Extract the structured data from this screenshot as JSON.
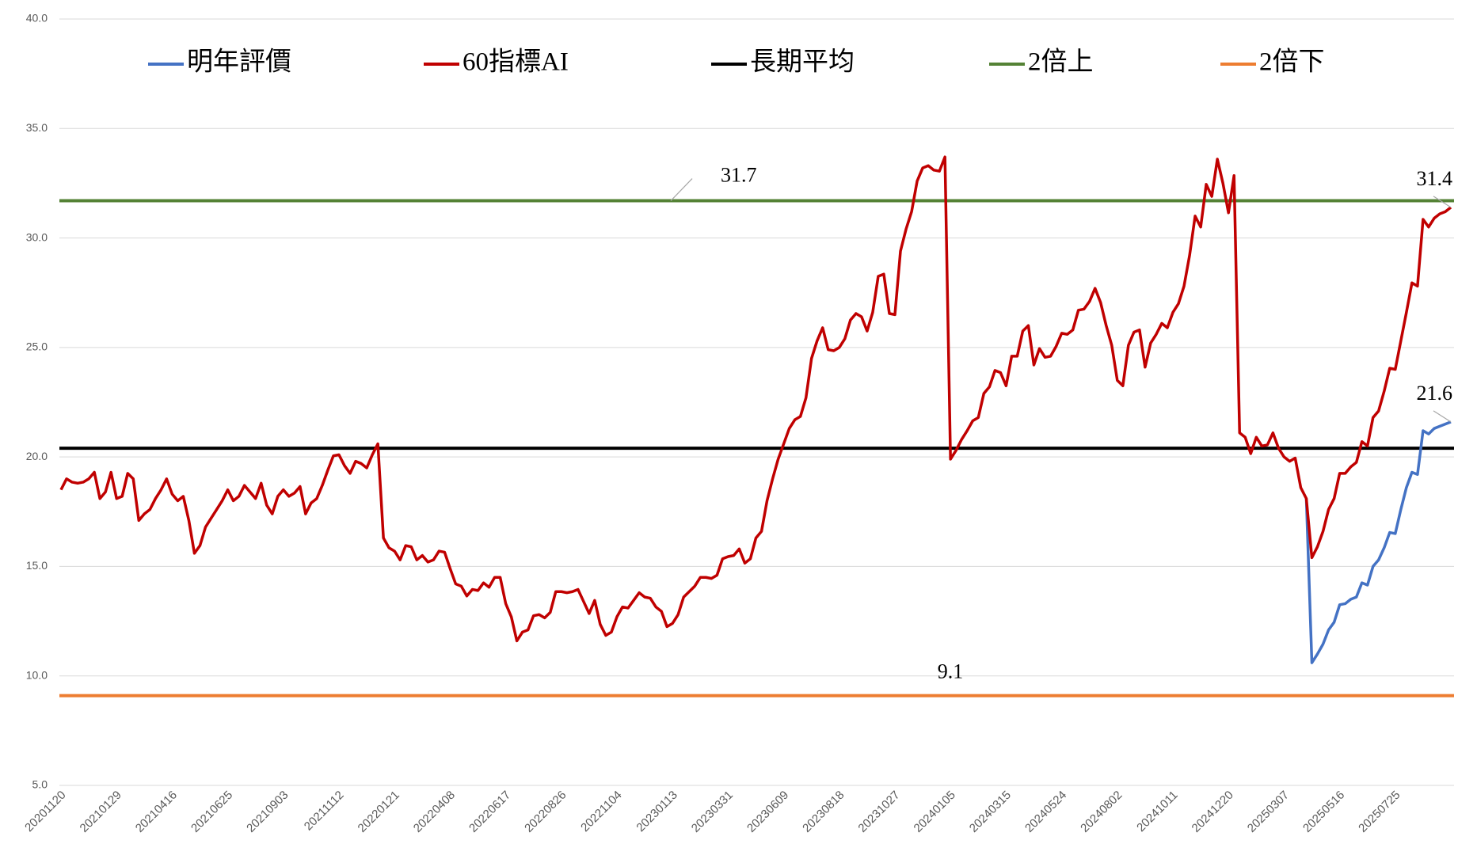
{
  "chart_data": {
    "type": "line",
    "categories": [
      "20201120",
      null,
      null,
      null,
      null,
      null,
      null,
      null,
      null,
      null,
      "20210129",
      null,
      null,
      null,
      null,
      null,
      null,
      null,
      null,
      null,
      "20210416",
      null,
      null,
      null,
      null,
      null,
      null,
      null,
      null,
      null,
      "20210625",
      null,
      null,
      null,
      null,
      null,
      null,
      null,
      null,
      null,
      "20210903",
      null,
      null,
      null,
      null,
      null,
      null,
      null,
      null,
      null,
      "20211112",
      null,
      null,
      null,
      null,
      null,
      null,
      null,
      null,
      null,
      "20220121",
      null,
      null,
      null,
      null,
      null,
      null,
      null,
      null,
      null,
      "20220408",
      null,
      null,
      null,
      null,
      null,
      null,
      null,
      null,
      null,
      "20220617",
      null,
      null,
      null,
      null,
      null,
      null,
      null,
      null,
      null,
      "20220826",
      null,
      null,
      null,
      null,
      null,
      null,
      null,
      null,
      null,
      "20221104",
      null,
      null,
      null,
      null,
      null,
      null,
      null,
      null,
      null,
      "20230113",
      null,
      null,
      null,
      null,
      null,
      null,
      null,
      null,
      null,
      "20230331",
      null,
      null,
      null,
      null,
      null,
      null,
      null,
      null,
      null,
      "20230609",
      null,
      null,
      null,
      null,
      null,
      null,
      null,
      null,
      null,
      "20230818",
      null,
      null,
      null,
      null,
      null,
      null,
      null,
      null,
      null,
      "20231027",
      null,
      null,
      null,
      null,
      null,
      null,
      null,
      null,
      null,
      "20240105",
      null,
      null,
      null,
      null,
      null,
      null,
      null,
      null,
      null,
      "20240315",
      null,
      null,
      null,
      null,
      null,
      null,
      null,
      null,
      null,
      "20240524",
      null,
      null,
      null,
      null,
      null,
      null,
      null,
      null,
      null,
      "20240802",
      null,
      null,
      null,
      null,
      null,
      null,
      null,
      null,
      null,
      "20241011",
      null,
      null,
      null,
      null,
      null,
      null,
      null,
      null,
      null,
      "20241220",
      null,
      null,
      null,
      null,
      null,
      null,
      null,
      null,
      null,
      "20250307",
      null,
      null,
      null,
      null,
      null,
      null,
      null,
      null,
      null,
      "20250516",
      null,
      null,
      null,
      null,
      null,
      null,
      null,
      null,
      null,
      "20250725",
      null,
      null,
      null,
      null,
      null,
      null,
      null,
      null,
      null,
      null
    ],
    "series": [
      {
        "name": "明年評價",
        "color": "#4472c4",
        "values": [
          null,
          null,
          null,
          null,
          null,
          null,
          null,
          null,
          null,
          null,
          null,
          null,
          null,
          null,
          null,
          null,
          null,
          null,
          null,
          null,
          null,
          null,
          null,
          null,
          null,
          null,
          null,
          null,
          null,
          null,
          null,
          null,
          null,
          null,
          null,
          null,
          null,
          null,
          null,
          null,
          null,
          null,
          null,
          null,
          null,
          null,
          null,
          null,
          null,
          null,
          null,
          null,
          null,
          null,
          null,
          null,
          null,
          null,
          null,
          null,
          null,
          null,
          null,
          null,
          null,
          null,
          null,
          null,
          null,
          null,
          null,
          null,
          null,
          null,
          null,
          null,
          null,
          null,
          null,
          null,
          null,
          null,
          null,
          null,
          null,
          null,
          null,
          null,
          null,
          null,
          null,
          null,
          null,
          null,
          null,
          null,
          null,
          null,
          null,
          null,
          null,
          null,
          null,
          null,
          null,
          null,
          null,
          null,
          null,
          null,
          null,
          null,
          null,
          null,
          null,
          null,
          null,
          null,
          null,
          null,
          null,
          null,
          null,
          null,
          null,
          null,
          null,
          null,
          null,
          null,
          null,
          null,
          null,
          null,
          null,
          null,
          null,
          null,
          null,
          null,
          null,
          null,
          null,
          null,
          null,
          null,
          null,
          null,
          null,
          null,
          null,
          null,
          null,
          null,
          null,
          null,
          null,
          null,
          null,
          null,
          null,
          null,
          null,
          null,
          null,
          null,
          null,
          null,
          null,
          null,
          null,
          null,
          null,
          null,
          null,
          null,
          null,
          null,
          null,
          null,
          null,
          null,
          null,
          null,
          null,
          null,
          null,
          null,
          null,
          null,
          null,
          null,
          null,
          null,
          null,
          null,
          null,
          null,
          null,
          null,
          null,
          null,
          null,
          null,
          null,
          null,
          null,
          null,
          null,
          null,
          null,
          null,
          null,
          null,
          null,
          null,
          null,
          null,
          null,
          null,
          null,
          null,
          null,
          null,
          18.1,
          10.6,
          11.0,
          11.45,
          12.1,
          12.45,
          13.25,
          13.3,
          13.5,
          13.6,
          14.25,
          14.15,
          15.0,
          15.3,
          15.85,
          16.55,
          16.5,
          17.6,
          18.6,
          19.3,
          19.2,
          21.2,
          21.05,
          21.3,
          21.4,
          21.5,
          21.6
        ]
      },
      {
        "name": "60指標AI",
        "color": "#c00000",
        "values": [
          18.5,
          19.0,
          18.85,
          18.8,
          18.85,
          19.0,
          19.3,
          18.1,
          18.4,
          19.3,
          18.1,
          18.2,
          19.25,
          19.0,
          17.1,
          17.4,
          17.6,
          18.1,
          18.5,
          19.0,
          18.3,
          18.0,
          18.2,
          17.1,
          15.6,
          15.95,
          16.8,
          17.2,
          17.6,
          18.0,
          18.5,
          18.0,
          18.2,
          18.7,
          18.4,
          18.1,
          18.8,
          17.8,
          17.4,
          18.2,
          18.5,
          18.2,
          18.35,
          18.65,
          17.4,
          17.9,
          18.1,
          18.7,
          19.4,
          20.05,
          20.1,
          19.6,
          19.25,
          19.8,
          19.7,
          19.5,
          20.1,
          20.6,
          16.3,
          15.85,
          15.7,
          15.3,
          15.95,
          15.9,
          15.3,
          15.5,
          15.2,
          15.3,
          15.7,
          15.65,
          14.9,
          14.2,
          14.1,
          13.65,
          13.95,
          13.9,
          14.25,
          14.05,
          14.5,
          14.5,
          13.3,
          12.7,
          11.6,
          12.0,
          12.1,
          12.75,
          12.8,
          12.65,
          12.9,
          13.85,
          13.85,
          13.8,
          13.85,
          13.95,
          13.4,
          12.85,
          13.45,
          12.35,
          11.85,
          12.0,
          12.7,
          13.15,
          13.1,
          13.45,
          13.8,
          13.6,
          13.55,
          13.15,
          12.95,
          12.25,
          12.4,
          12.8,
          13.6,
          13.85,
          14.1,
          14.5,
          14.5,
          14.45,
          14.6,
          15.35,
          15.45,
          15.5,
          15.8,
          15.15,
          15.35,
          16.3,
          16.6,
          18.0,
          19.0,
          19.9,
          20.6,
          21.3,
          21.7,
          21.85,
          22.7,
          24.5,
          25.3,
          25.9,
          24.9,
          24.85,
          25.0,
          25.4,
          26.25,
          26.55,
          26.4,
          25.75,
          26.6,
          28.25,
          28.35,
          26.55,
          26.5,
          29.4,
          30.4,
          31.2,
          32.6,
          33.2,
          33.3,
          33.1,
          33.05,
          33.7,
          19.9,
          20.3,
          20.8,
          21.2,
          21.65,
          21.8,
          22.9,
          23.2,
          23.95,
          23.85,
          23.25,
          24.6,
          24.6,
          25.75,
          26.0,
          24.2,
          24.95,
          24.55,
          24.6,
          25.05,
          25.65,
          25.6,
          25.8,
          26.7,
          26.75,
          27.1,
          27.7,
          27.05,
          26.0,
          25.1,
          23.5,
          23.25,
          25.1,
          25.7,
          25.8,
          24.1,
          25.2,
          25.6,
          26.1,
          25.9,
          26.6,
          27.0,
          27.8,
          29.2,
          31.0,
          30.5,
          32.45,
          31.9,
          33.6,
          32.5,
          31.15,
          32.85,
          21.1,
          20.9,
          20.15,
          20.9,
          20.5,
          20.55,
          21.1,
          20.4,
          20.0,
          19.8,
          19.95,
          18.6,
          18.1,
          15.4,
          15.9,
          16.6,
          17.6,
          18.1,
          19.25,
          19.25,
          19.55,
          19.75,
          20.7,
          20.5,
          21.8,
          22.1,
          23.0,
          24.05,
          24.0,
          25.3,
          26.6,
          27.95,
          27.8,
          30.85,
          30.5,
          30.9,
          31.1,
          31.2,
          31.4
        ]
      }
    ],
    "reference_lines": [
      {
        "name": "長期平均",
        "color": "#000000",
        "value": 20.4,
        "annotate": false
      },
      {
        "name": "2倍上",
        "color": "#548235",
        "value": 31.7,
        "annotate": true
      },
      {
        "name": "2倍下",
        "color": "#ed7d31",
        "value": 9.1,
        "annotate": true
      }
    ],
    "ylim": [
      5,
      40
    ],
    "yticks": [
      {
        "value": 5,
        "label": "5.0"
      },
      {
        "value": 10,
        "label": "10.0"
      },
      {
        "value": 15,
        "label": "15.0"
      },
      {
        "value": 20,
        "label": "20.0"
      },
      {
        "value": 25,
        "label": "25.0"
      },
      {
        "value": 30,
        "label": "30.0"
      },
      {
        "value": 35,
        "label": "35.0"
      },
      {
        "value": 40,
        "label": "40.0"
      }
    ],
    "grid": true,
    "legend": "top"
  }
}
